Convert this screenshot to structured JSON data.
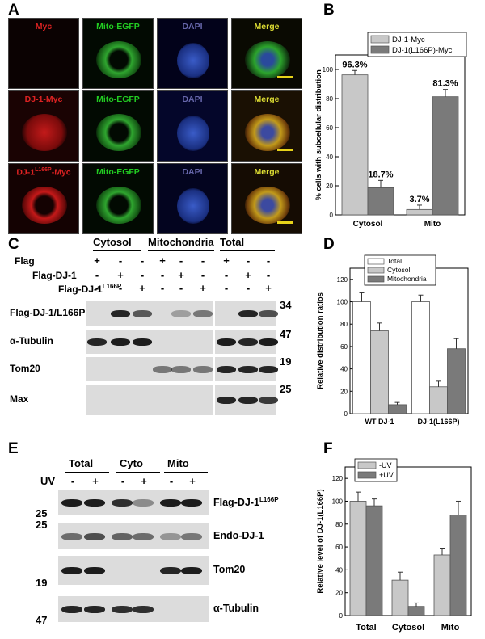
{
  "panels": {
    "A": {
      "label": "A",
      "rows": [
        {
          "cols": [
            "Myc",
            "Mito-EGFP",
            "DAPI",
            "Merge"
          ]
        },
        {
          "cols": [
            "DJ-1-Myc",
            "Mito-EGFP",
            "DAPI",
            "Merge"
          ]
        },
        {
          "cols": [
            "DJ-1",
            "Mito-EGFP",
            "DAPI",
            "Merge"
          ],
          "sup": "L166P",
          "suffix": "-Myc"
        }
      ]
    },
    "B": {
      "label": "B"
    },
    "C": {
      "label": "C",
      "groups": [
        "Cytosol",
        "Mitochondria",
        "Total"
      ],
      "row_labels": [
        "Flag",
        "Flag-DJ-1",
        "Flag-DJ-1"
      ],
      "row_sup": "L166P",
      "lanes": [
        [
          "+",
          "-",
          "-",
          "+",
          "-",
          "-",
          "+",
          "-",
          "-"
        ],
        [
          "-",
          "+",
          "-",
          "-",
          "+",
          "-",
          "-",
          "+",
          "-"
        ],
        [
          "-",
          "-",
          "+",
          "-",
          "-",
          "+",
          "-",
          "-",
          "+"
        ]
      ],
      "blots": [
        "Flag-DJ-1/L166P",
        "α-Tubulin",
        "Tom20",
        "Max"
      ],
      "markers": [
        "34",
        "47",
        "19",
        "25"
      ]
    },
    "D": {
      "label": "D"
    },
    "E": {
      "label": "E",
      "groups": [
        "Total",
        "Cyto",
        "Mito"
      ],
      "uv_label": "UV",
      "uv_lanes": [
        "-",
        "+",
        "-",
        "+",
        "-",
        "+"
      ],
      "blots": [
        "Flag-DJ-1",
        "Endo-DJ-1",
        "Tom20",
        "α-Tubulin"
      ],
      "blot_sup": "L166P",
      "markers": [
        "25",
        "25",
        "19",
        "47"
      ]
    },
    "F": {
      "label": "F"
    }
  },
  "chart_data": [
    {
      "type": "bar",
      "panel": "B",
      "categories": [
        "Cytosol",
        "Mito"
      ],
      "series": [
        {
          "name": "DJ-1-Myc",
          "values": [
            96.3,
            3.7
          ],
          "errors": [
            3,
            3
          ],
          "labels": [
            "96.3%",
            "3.7%"
          ],
          "color": "#c8c8c8"
        },
        {
          "name": "DJ-1(L166P)-Myc",
          "values": [
            18.7,
            81.3
          ],
          "errors": [
            5,
            5
          ],
          "labels": [
            "18.7%",
            "81.3%"
          ],
          "color": "#7a7a7a"
        }
      ],
      "ylabel": "% cells with subcellular distribution",
      "ylim": [
        0,
        110
      ],
      "yticks": [
        "0",
        "20",
        "40",
        "60",
        "80",
        "100"
      ],
      "legend": "top"
    },
    {
      "type": "bar",
      "panel": "D",
      "categories": [
        "WT DJ-1",
        "DJ-1(L166P)"
      ],
      "series": [
        {
          "name": "Total",
          "values": [
            100,
            100
          ],
          "errors": [
            8,
            6
          ],
          "color": "#ffffff"
        },
        {
          "name": "Cytosol",
          "values": [
            74,
            24
          ],
          "errors": [
            7,
            5
          ],
          "color": "#c8c8c8"
        },
        {
          "name": "Mitochondria",
          "values": [
            8,
            58
          ],
          "errors": [
            2,
            9
          ],
          "color": "#7a7a7a"
        }
      ],
      "ylabel": "Relative distribution ratios",
      "ylim": [
        0,
        130
      ],
      "yticks": [
        "0",
        "20",
        "40",
        "60",
        "80",
        "100",
        "120"
      ],
      "legend": "top-left"
    },
    {
      "type": "bar",
      "panel": "F",
      "categories": [
        "Total",
        "Cytosol",
        "Mito"
      ],
      "series": [
        {
          "name": "-UV",
          "values": [
            100,
            31,
            53
          ],
          "errors": [
            8,
            7,
            6
          ],
          "color": "#c8c8c8"
        },
        {
          "name": "+UV",
          "values": [
            96,
            8,
            88
          ],
          "errors": [
            6,
            3,
            12
          ],
          "color": "#7a7a7a"
        }
      ],
      "ylabel": "Relative level of DJ-1(L166P)",
      "ylim": [
        0,
        130
      ],
      "yticks": [
        "0",
        "20",
        "40",
        "60",
        "80",
        "100",
        "120"
      ],
      "legend": "top-left"
    }
  ]
}
